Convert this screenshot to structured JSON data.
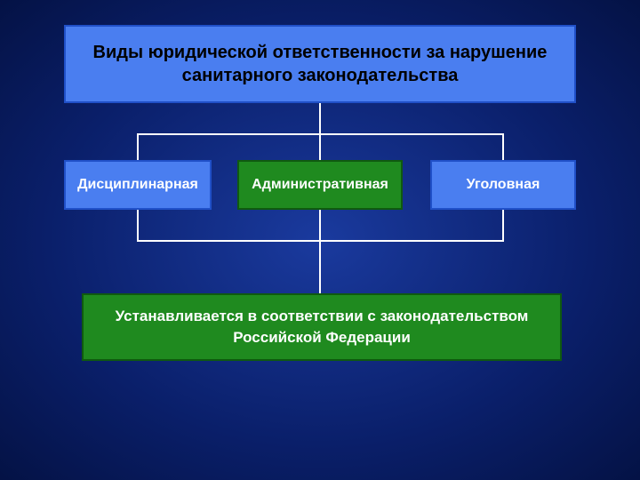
{
  "diagram": {
    "type": "flowchart",
    "background": {
      "gradient_center": "#1a3a9e",
      "gradient_mid": "#0a1f6a",
      "gradient_edge": "#041245"
    },
    "top_box": {
      "text": "Виды юридической ответственности за нарушение санитарного законодательства",
      "bg_color": "#4a7ef0",
      "border_color": "#2050c8",
      "text_color": "#000000",
      "font_size": 20,
      "font_weight": "bold"
    },
    "middle_boxes": {
      "left": {
        "text": "Дисциплинарная",
        "bg_color": "#4a7ef0",
        "border_color": "#2050c8",
        "text_color": "#ffffff",
        "font_size": 16
      },
      "center": {
        "text": "Административная",
        "bg_color": "#1f8a1f",
        "border_color": "#0f5a0f",
        "text_color": "#ffffff",
        "font_size": 16
      },
      "right": {
        "text": "Уголовная",
        "bg_color": "#4a7ef0",
        "border_color": "#2050c8",
        "text_color": "#ffffff",
        "font_size": 16
      }
    },
    "bottom_box": {
      "text": "Устанавливается в соответствии с законодательством Российской Федерации",
      "bg_color": "#1f8a1f",
      "border_color": "#0f5a0f",
      "text_color": "#ffffff",
      "font_size": 17
    },
    "connector_color": "#ffffff",
    "connector_width": 2
  }
}
